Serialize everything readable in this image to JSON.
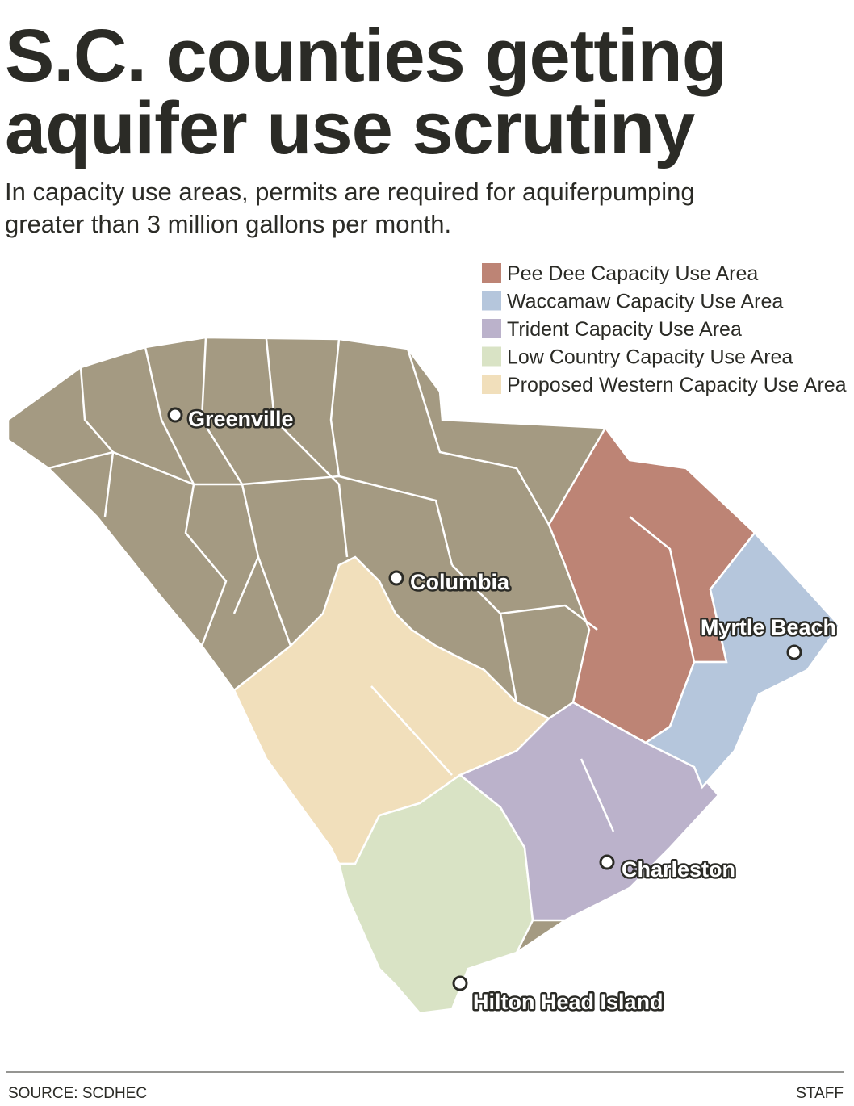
{
  "title": [
    "S.C. counties getting",
    "aquifer use scrutiny"
  ],
  "subtitle": [
    "In capacity use areas, permits are required for aquiferpumping",
    "greater than 3 million gallons per month."
  ],
  "legend": [
    {
      "label": "Pee Dee Capacity Use Area",
      "color": "#bd8475"
    },
    {
      "label": "Waccamaw Capacity Use Area",
      "color": "#b5c6dc"
    },
    {
      "label": "Trident Capacity Use Area",
      "color": "#bbb2cb"
    },
    {
      "label": "Low Country Capacity Use Area",
      "color": "#d9e3c5"
    },
    {
      "label": "Proposed Western Capacity Use Area",
      "color": "#f1dfbb"
    }
  ],
  "cities": [
    "Greenville",
    "Columbia",
    "Myrtle Beach",
    "Charleston",
    "Hilton Head Island"
  ],
  "footer": {
    "source": "SOURCE:  SCDHEC",
    "credit": "STAFF"
  }
}
